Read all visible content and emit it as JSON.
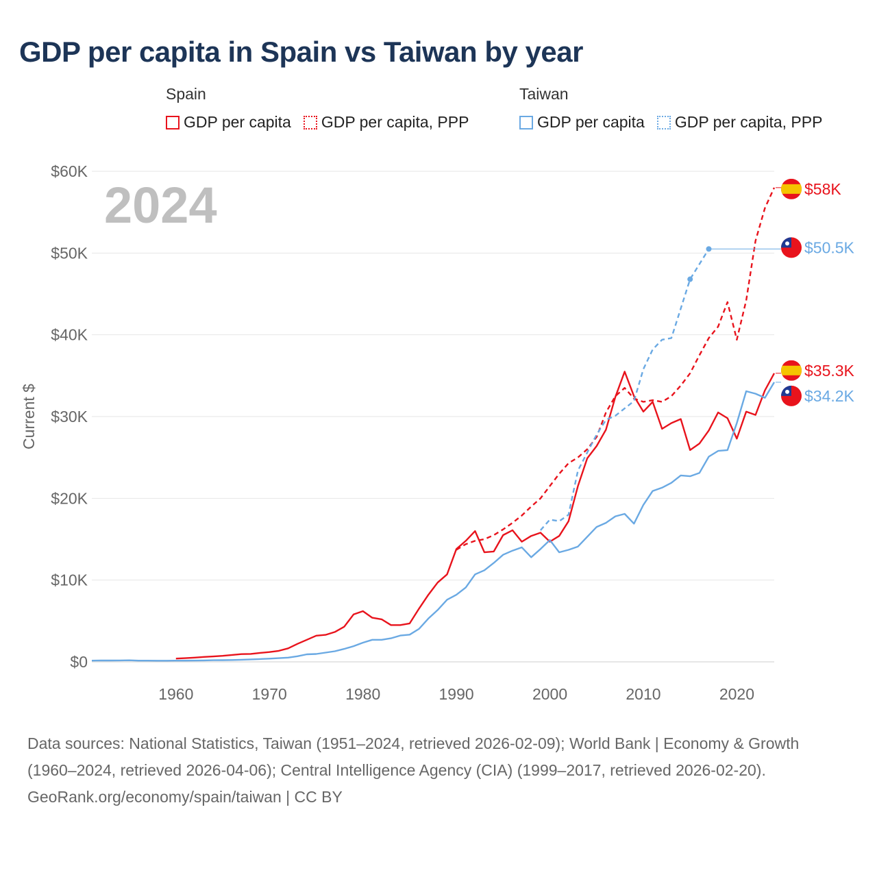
{
  "title": "GDP per capita in Spain vs Taiwan by year",
  "legend": {
    "spain": {
      "group": "Spain",
      "gdp": "GDP per capita",
      "ppp": "GDP per capita, PPP"
    },
    "taiwan": {
      "group": "Taiwan",
      "gdp": "GDP per capita",
      "ppp": "GDP per capita, PPP"
    }
  },
  "colors": {
    "spain": "#e8131c",
    "taiwan": "#6aa9e3",
    "grid": "#e6e6e6",
    "axis": "#666666",
    "year": "#bfbfbf"
  },
  "footer": {
    "sources": "Data sources: National Statistics, Taiwan (1951–2024, retrieved 2026-02-09); World Bank | Economy & Growth (1960–2024, retrieved 2026-04-06); Central Intelligence Agency (CIA) (1999–2017, retrieved 2026-02-20).",
    "credit": "GeoRank.org/economy/spain/taiwan | CC BY"
  },
  "chart_data": {
    "type": "line",
    "title": "GDP per capita in Spain vs Taiwan by year",
    "current_year": "2024",
    "ylabel": "Current $",
    "xlabel": "",
    "xlim": [
      1951,
      2024
    ],
    "ylim": [
      0,
      60000
    ],
    "x_ticks": [
      1960,
      1970,
      1980,
      1990,
      2000,
      2010,
      2020
    ],
    "y_ticks": [
      0,
      10000,
      20000,
      30000,
      40000,
      50000,
      60000
    ],
    "y_tick_labels": [
      "$0",
      "$10K",
      "$20K",
      "$30K",
      "$40K",
      "$50K",
      "$60K"
    ],
    "series": [
      {
        "name": "Spain GDP per capita",
        "country": "spain",
        "style": "solid",
        "end_label": "$35.3K",
        "x": [
          1960,
          1961,
          1962,
          1963,
          1964,
          1965,
          1966,
          1967,
          1968,
          1969,
          1970,
          1971,
          1972,
          1973,
          1974,
          1975,
          1976,
          1977,
          1978,
          1979,
          1980,
          1981,
          1982,
          1983,
          1984,
          1985,
          1986,
          1987,
          1988,
          1989,
          1990,
          1991,
          1992,
          1993,
          1994,
          1995,
          1996,
          1997,
          1998,
          1999,
          2000,
          2001,
          2002,
          2003,
          2004,
          2005,
          2006,
          2007,
          2008,
          2009,
          2010,
          2011,
          2012,
          2013,
          2014,
          2015,
          2016,
          2017,
          2018,
          2019,
          2020,
          2021,
          2022,
          2023,
          2024
        ],
        "y": [
          400,
          450,
          520,
          600,
          660,
          740,
          850,
          950,
          970,
          1100,
          1200,
          1350,
          1650,
          2200,
          2700,
          3200,
          3300,
          3650,
          4300,
          5800,
          6200,
          5400,
          5200,
          4500,
          4500,
          4700,
          6500,
          8200,
          9700,
          10700,
          13800,
          14800,
          16000,
          13400,
          13500,
          15500,
          16100,
          14700,
          15400,
          15800,
          14700,
          15400,
          17200,
          21500,
          24900,
          26400,
          28400,
          32400,
          35500,
          32500,
          30600,
          31800,
          28500,
          29200,
          29700,
          25900,
          26700,
          28300,
          30500,
          29800,
          27300,
          30600,
          30200,
          33200,
          35300
        ]
      },
      {
        "name": "Spain GDP per capita, PPP",
        "country": "spain",
        "style": "dashed",
        "end_label": "$58K",
        "x": [
          1990,
          1991,
          1992,
          1993,
          1994,
          1995,
          1996,
          1997,
          1998,
          1999,
          2000,
          2001,
          2002,
          2003,
          2004,
          2005,
          2006,
          2007,
          2008,
          2009,
          2010,
          2011,
          2012,
          2013,
          2014,
          2015,
          2016,
          2017,
          2018,
          2019,
          2020,
          2021,
          2022,
          2023,
          2024
        ],
        "y": [
          13700,
          14400,
          14800,
          15000,
          15500,
          16200,
          17000,
          17900,
          19000,
          20000,
          21500,
          23000,
          24300,
          25000,
          26000,
          27500,
          30500,
          32500,
          33500,
          32200,
          31800,
          32000,
          31800,
          32500,
          33800,
          35300,
          37500,
          39600,
          41000,
          44000,
          39400,
          44200,
          51500,
          55500,
          58000
        ]
      },
      {
        "name": "Taiwan GDP per capita",
        "country": "taiwan",
        "style": "solid",
        "end_label": "$34.2K",
        "x": [
          1951,
          1952,
          1953,
          1954,
          1955,
          1956,
          1957,
          1958,
          1959,
          1960,
          1961,
          1962,
          1963,
          1964,
          1965,
          1966,
          1967,
          1968,
          1969,
          1970,
          1971,
          1972,
          1973,
          1974,
          1975,
          1976,
          1977,
          1978,
          1979,
          1980,
          1981,
          1982,
          1983,
          1984,
          1985,
          1986,
          1987,
          1988,
          1989,
          1990,
          1991,
          1992,
          1993,
          1994,
          1995,
          1996,
          1997,
          1998,
          1999,
          2000,
          2001,
          2002,
          2003,
          2004,
          2005,
          2006,
          2007,
          2008,
          2009,
          2010,
          2011,
          2012,
          2013,
          2014,
          2015,
          2016,
          2017,
          2018,
          2019,
          2020,
          2021,
          2022,
          2023,
          2024
        ],
        "y": [
          150,
          180,
          170,
          180,
          190,
          150,
          150,
          140,
          140,
          150,
          150,
          160,
          180,
          200,
          210,
          230,
          260,
          300,
          340,
          390,
          450,
          520,
          690,
          920,
          960,
          1130,
          1300,
          1580,
          1920,
          2350,
          2700,
          2700,
          2880,
          3220,
          3330,
          4030,
          5300,
          6340,
          7600,
          8200,
          9100,
          10700,
          11200,
          12100,
          13100,
          13600,
          14000,
          12800,
          13800,
          14900,
          13400,
          13700,
          14100,
          15300,
          16500,
          17000,
          17800,
          18100,
          16900,
          19200,
          20900,
          21300,
          21900,
          22800,
          22700,
          23100,
          25100,
          25800,
          25900,
          29200,
          33100,
          32800,
          32300,
          34200
        ]
      },
      {
        "name": "Taiwan GDP per capita, PPP",
        "country": "taiwan",
        "style": "dashed",
        "end_label": "$50.5K",
        "x": [
          1999,
          2000,
          2001,
          2002,
          2003,
          2004,
          2005,
          2006,
          2007,
          2008,
          2009,
          2010,
          2011,
          2012,
          2013,
          2015,
          2017
        ],
        "y": [
          16100,
          17400,
          17200,
          18000,
          23400,
          25600,
          27800,
          29600,
          30100,
          31000,
          31900,
          35800,
          38200,
          39400,
          39600,
          46800,
          50500
        ],
        "markers_at": [
          2015,
          2017
        ],
        "extend_to": 2024
      }
    ]
  }
}
